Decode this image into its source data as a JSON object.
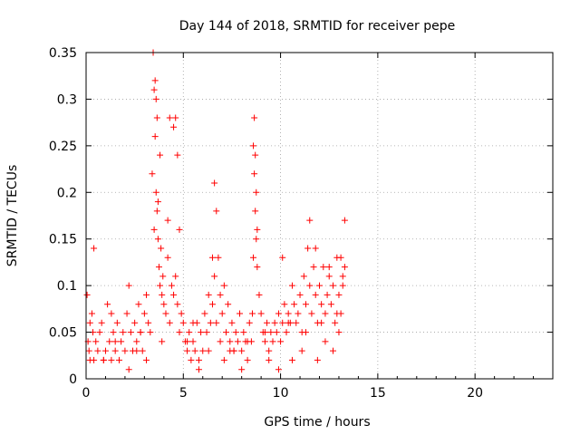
{
  "chart_data": {
    "type": "scatter",
    "title": "Day 144 of 2018, SRMTID for receiver pepe",
    "xlabel": "GPS time / hours",
    "ylabel": "SRMTID / TECUs",
    "xlim": [
      0,
      24
    ],
    "ylim": [
      0,
      0.35
    ],
    "xticks": [
      0,
      5,
      10,
      15,
      20
    ],
    "yticks": [
      0,
      0.05,
      0.1,
      0.15,
      0.2,
      0.25,
      0.3,
      0.35
    ],
    "xtick_labels": [
      "0",
      "5",
      "10",
      "15",
      "20"
    ],
    "ytick_labels": [
      "0",
      "0.05",
      "0.1",
      "0.15",
      "0.2",
      "0.25",
      "0.3",
      "0.35"
    ],
    "grid": true,
    "marker": "plus",
    "color": "#ff0000",
    "series": [
      {
        "name": "SRMTID",
        "x": [
          0.05,
          0.1,
          0.15,
          0.2,
          0.3,
          0.35,
          0.4,
          0.5,
          0.6,
          0.7,
          0.8,
          0.9,
          1.0,
          1.1,
          1.2,
          1.3,
          1.4,
          1.5,
          1.6,
          1.7,
          1.8,
          1.9,
          2.0,
          2.1,
          2.2,
          2.3,
          2.4,
          2.5,
          2.6,
          2.7,
          2.8,
          2.9,
          3.0,
          3.1,
          3.2,
          3.3,
          3.4,
          3.45,
          3.5,
          3.55,
          3.6,
          3.65,
          3.7,
          3.75,
          3.8,
          3.85,
          3.9,
          3.95,
          4.0,
          4.1,
          4.2,
          4.3,
          4.4,
          4.5,
          4.6,
          4.7,
          4.8,
          4.9,
          5.0,
          5.1,
          5.2,
          5.3,
          5.4,
          5.5,
          5.6,
          5.7,
          5.8,
          5.9,
          6.0,
          6.1,
          6.2,
          6.3,
          6.4,
          6.5,
          6.6,
          6.7,
          6.8,
          6.9,
          7.0,
          7.1,
          7.2,
          7.3,
          7.4,
          7.5,
          7.6,
          7.7,
          7.8,
          7.9,
          8.0,
          8.1,
          8.2,
          8.3,
          8.4,
          8.5,
          8.55,
          8.6,
          8.65,
          8.7,
          8.75,
          8.8,
          8.9,
          9.0,
          9.1,
          9.2,
          9.3,
          9.4,
          9.5,
          9.6,
          9.7,
          9.8,
          9.9,
          10.0,
          10.1,
          10.2,
          10.3,
          10.4,
          10.5,
          10.6,
          10.7,
          10.8,
          10.9,
          11.0,
          11.1,
          11.2,
          11.3,
          11.4,
          11.5,
          11.6,
          11.7,
          11.8,
          11.9,
          12.0,
          12.1,
          12.2,
          12.3,
          12.4,
          12.5,
          12.6,
          12.7,
          12.8,
          12.9,
          13.0,
          13.1,
          13.2,
          13.3,
          3.5,
          3.55,
          3.6,
          3.65,
          3.7,
          3.8,
          4.2,
          4.3,
          4.5,
          4.6,
          4.7,
          4.8,
          6.5,
          6.6,
          6.7,
          8.6,
          8.65,
          8.7,
          8.75,
          8.8,
          10.1,
          11.5,
          11.8,
          12.5,
          13.1,
          13.2,
          13.3,
          0.4,
          0.9,
          1.3,
          2.2,
          2.6,
          3.1,
          5.2,
          5.8,
          6.3,
          7.1,
          7.6,
          8.0,
          9.4,
          9.9,
          10.6,
          11.1,
          11.9,
          12.3,
          12.7,
          13.0,
          0.2,
          1.5,
          2.8,
          3.9,
          5.5,
          6.9,
          7.4,
          8.3,
          9.2,
          10.4,
          11.3,
          12.1,
          12.9
        ],
        "y": [
          0.09,
          0.04,
          0.03,
          0.06,
          0.07,
          0.05,
          0.02,
          0.04,
          0.03,
          0.05,
          0.06,
          0.02,
          0.03,
          0.08,
          0.04,
          0.02,
          0.05,
          0.03,
          0.06,
          0.02,
          0.04,
          0.05,
          0.03,
          0.07,
          0.1,
          0.05,
          0.03,
          0.06,
          0.04,
          0.08,
          0.05,
          0.03,
          0.07,
          0.09,
          0.06,
          0.05,
          0.22,
          0.35,
          0.31,
          0.26,
          0.2,
          0.18,
          0.15,
          0.12,
          0.1,
          0.14,
          0.09,
          0.11,
          0.08,
          0.07,
          0.13,
          0.06,
          0.1,
          0.09,
          0.11,
          0.08,
          0.05,
          0.07,
          0.06,
          0.04,
          0.03,
          0.05,
          0.02,
          0.04,
          0.03,
          0.06,
          0.02,
          0.05,
          0.03,
          0.07,
          0.05,
          0.09,
          0.06,
          0.08,
          0.11,
          0.06,
          0.13,
          0.09,
          0.07,
          0.1,
          0.05,
          0.08,
          0.04,
          0.06,
          0.03,
          0.05,
          0.04,
          0.07,
          0.03,
          0.05,
          0.04,
          0.02,
          0.06,
          0.04,
          0.07,
          0.25,
          0.22,
          0.18,
          0.15,
          0.12,
          0.09,
          0.07,
          0.05,
          0.04,
          0.06,
          0.03,
          0.05,
          0.04,
          0.06,
          0.05,
          0.07,
          0.04,
          0.06,
          0.08,
          0.05,
          0.07,
          0.06,
          0.1,
          0.08,
          0.06,
          0.07,
          0.09,
          0.05,
          0.11,
          0.08,
          0.14,
          0.1,
          0.07,
          0.12,
          0.09,
          0.06,
          0.1,
          0.08,
          0.12,
          0.07,
          0.09,
          0.11,
          0.08,
          0.1,
          0.06,
          0.13,
          0.09,
          0.07,
          0.11,
          0.12,
          0.16,
          0.32,
          0.3,
          0.28,
          0.19,
          0.24,
          0.17,
          0.28,
          0.27,
          0.28,
          0.24,
          0.16,
          0.13,
          0.21,
          0.18,
          0.13,
          0.28,
          0.24,
          0.2,
          0.16,
          0.13,
          0.17,
          0.14,
          0.12,
          0.13,
          0.1,
          0.17,
          0.14,
          0.02,
          0.07,
          0.01,
          0.03,
          0.02,
          0.04,
          0.01,
          0.03,
          0.02,
          0.03,
          0.01,
          0.02,
          0.01,
          0.02,
          0.03,
          0.02,
          0.04,
          0.03,
          0.05,
          0.02,
          0.04,
          0.05,
          0.04,
          0.06,
          0.04,
          0.03,
          0.04,
          0.05,
          0.06,
          0.05,
          0.06,
          0.07
        ]
      }
    ]
  }
}
